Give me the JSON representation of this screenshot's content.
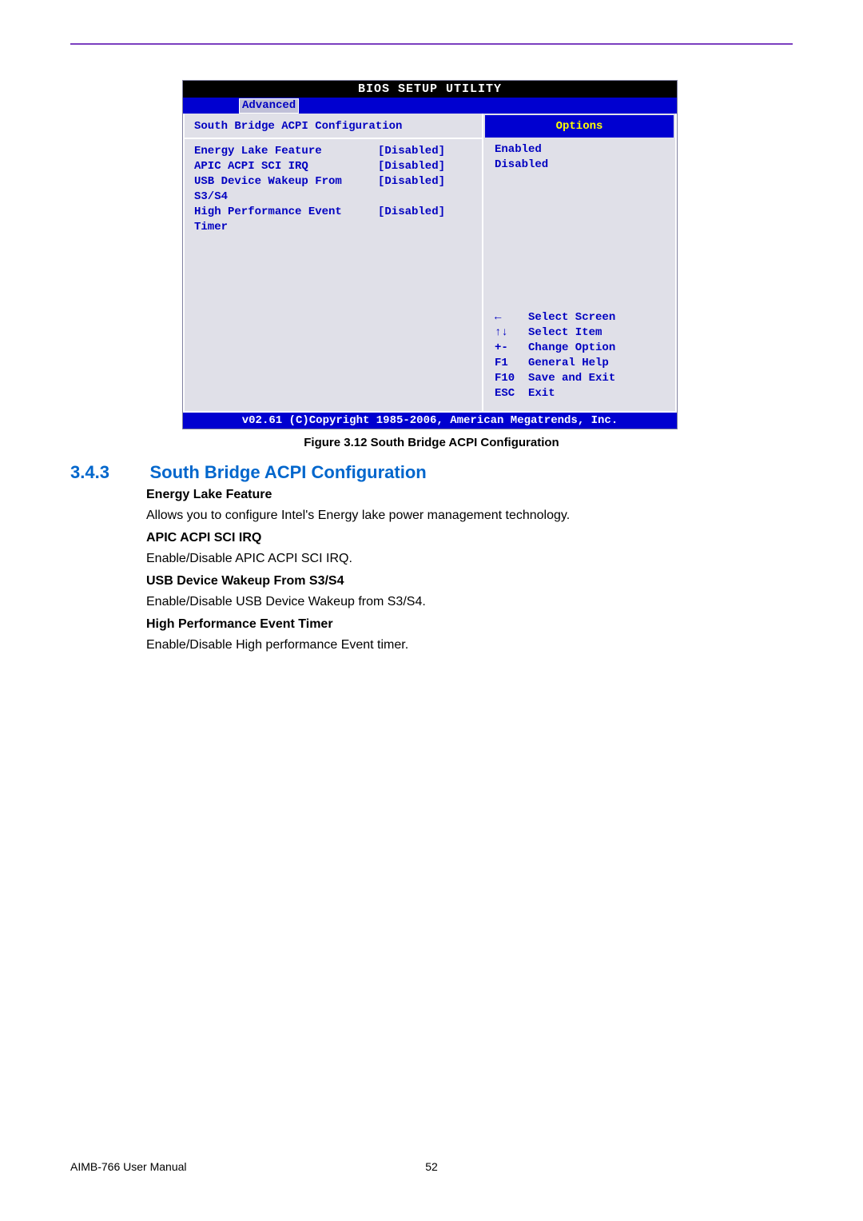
{
  "colors": {
    "accent_purple": "#7b3fbf",
    "link_blue": "#0066cc",
    "bios_blue": "#0000d0",
    "bios_gray": "#e0e0e8",
    "bios_text": "#0000c0",
    "bios_yellow": "#ffff00"
  },
  "bios": {
    "title": "BIOS SETUP UTILITY",
    "active_tab": "Advanced",
    "left_header": "South Bridge ACPI Configuration",
    "settings": [
      {
        "label": "Energy Lake Feature",
        "value": "[Disabled]"
      },
      {
        "label": "APIC ACPI SCI IRQ",
        "value": "[Disabled]"
      },
      {
        "label": "USB Device Wakeup From S3/S4",
        "value": "[Disabled]"
      },
      {
        "label": "High Performance Event Timer",
        "value": "[Disabled]"
      }
    ],
    "right_header": "Options",
    "options": [
      "Enabled",
      "Disabled"
    ],
    "help": [
      {
        "key": "←",
        "action": "Select Screen"
      },
      {
        "key": "↑↓",
        "action": "Select Item"
      },
      {
        "key": "+-",
        "action": "Change Option"
      },
      {
        "key": "F1",
        "action": "General Help"
      },
      {
        "key": "F10",
        "action": "Save and Exit"
      },
      {
        "key": "ESC",
        "action": "Exit"
      }
    ],
    "footer": "v02.61 (C)Copyright 1985-2006, American Megatrends, Inc."
  },
  "figure_caption": "Figure 3.12 South Bridge ACPI Configuration",
  "section": {
    "number": "3.4.3",
    "title": "South Bridge ACPI Configuration",
    "items": [
      {
        "title": "Energy Lake Feature",
        "desc": "Allows you to configure Intel's Energy lake power management technology."
      },
      {
        "title": "APIC ACPI SCI IRQ",
        "desc": "Enable/Disable APIC ACPI SCI IRQ."
      },
      {
        "title": "USB Device Wakeup From S3/S4",
        "desc": "Enable/Disable USB Device Wakeup from S3/S4."
      },
      {
        "title": "High Performance Event Timer",
        "desc": "Enable/Disable High performance Event timer."
      }
    ]
  },
  "footer": {
    "manual": "AIMB-766 User Manual",
    "page": "52"
  }
}
